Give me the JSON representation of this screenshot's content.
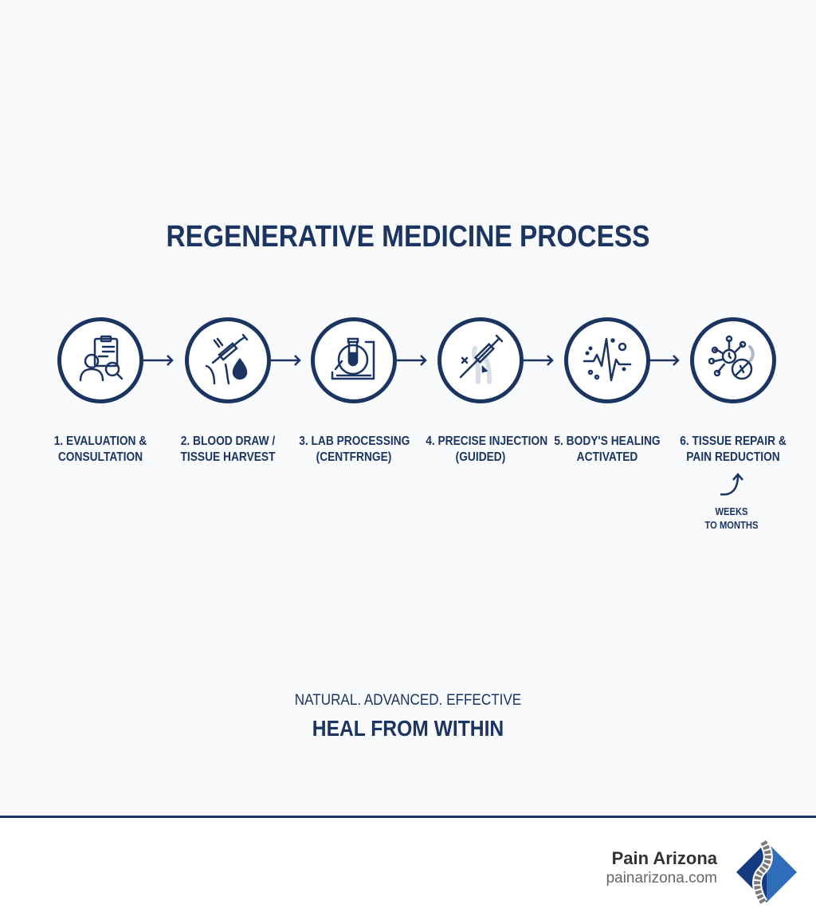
{
  "title": "REGENERATIVE MEDICINE PROCESS",
  "colors": {
    "primary": "#1b3461",
    "logo_dark": "#143a82",
    "logo_light": "#2f6dbb",
    "spine": "#7a7a7a"
  },
  "steps": [
    {
      "line1": "1. EVALUATION &",
      "line2": "CONSULTATION",
      "icon": "clipboard-person-magnifier-icon"
    },
    {
      "line1": "2. BLOOD DRAW /",
      "line2": "TISSUE HARVEST",
      "icon": "syringe-blood-drop-icon"
    },
    {
      "line1": "3. LAB PROCESSING",
      "line2": "(CENTFRNGE)",
      "icon": "centrifuge-test-tube-icon"
    },
    {
      "line1": "4. PRECISE INJECTION",
      "line2": "(GUIDED)",
      "icon": "syringe-joint-icon"
    },
    {
      "line1": "5. BODY'S HEALING",
      "line2": "ACTIVATED",
      "icon": "pulse-wave-icon"
    },
    {
      "line1": "6. TISSUE REPAIR &",
      "line2": "PAIN REDUCTION",
      "icon": "cell-repair-icon"
    }
  ],
  "timeline_note": {
    "line1": "WEEKS",
    "line2": "TO MONTHS"
  },
  "tagline": "NATURAL. ADVANCED. EFFECTIVE",
  "headline": "HEAL FROM WITHIN",
  "footer": {
    "brand_name": "Pain Arizona",
    "url": "painarizona.com",
    "logo": "spine-diamond-logo"
  }
}
